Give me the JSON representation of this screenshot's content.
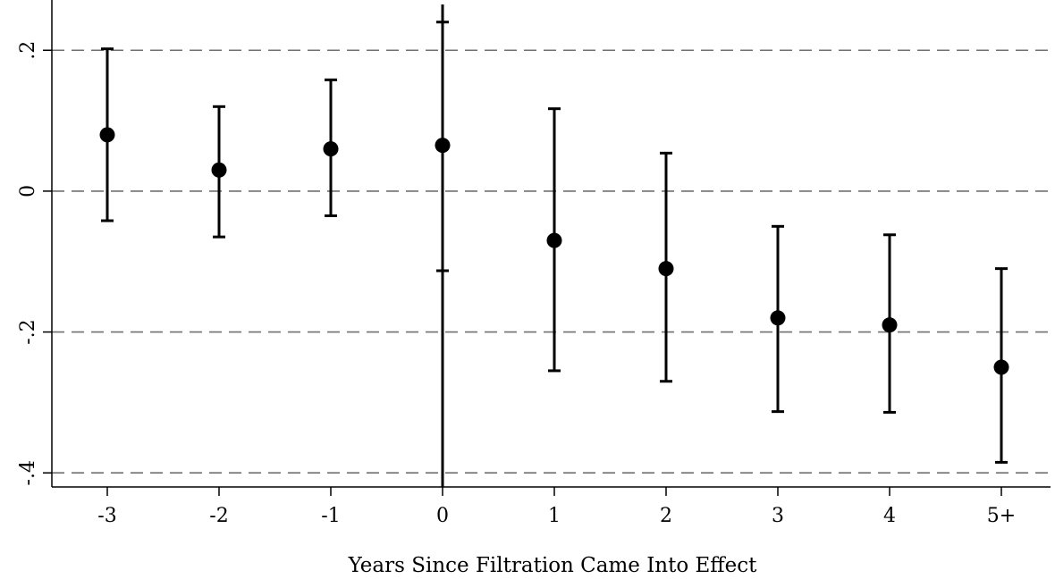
{
  "chart_data": {
    "type": "scatter",
    "title": "",
    "xlabel": "Years Since Filtration Came Into Effect",
    "ylabel": "",
    "categories": [
      "-3",
      "-2",
      "-1",
      "0",
      "1",
      "2",
      "3",
      "4",
      "5+"
    ],
    "series": [
      {
        "values": [
          0.08,
          0.03,
          0.06,
          0.065,
          -0.07,
          -0.11,
          -0.18,
          -0.19,
          -0.25
        ],
        "ci_low": [
          -0.042,
          -0.065,
          -0.035,
          -0.113,
          -0.255,
          -0.27,
          -0.313,
          -0.314,
          -0.385
        ],
        "ci_high": [
          0.202,
          0.12,
          0.158,
          0.24,
          0.117,
          0.054,
          -0.05,
          -0.062,
          -0.11
        ]
      }
    ],
    "ylim": [
      -0.42,
      0.265
    ],
    "y_ticks": [
      {
        "value": -0.4,
        "label": "-.4"
      },
      {
        "value": -0.2,
        "label": "-.2"
      },
      {
        "value": 0,
        "label": "0"
      },
      {
        "value": 0.2,
        "label": ".2"
      }
    ],
    "reference_lines_y": [
      -0.4,
      -0.2,
      0,
      0.2
    ],
    "vertical_line_category": "0",
    "grid": false,
    "legend": "none",
    "colors": {
      "marker": "#000000",
      "errorbar": "#000000",
      "refline": "#707070",
      "axis": "#000000"
    }
  }
}
